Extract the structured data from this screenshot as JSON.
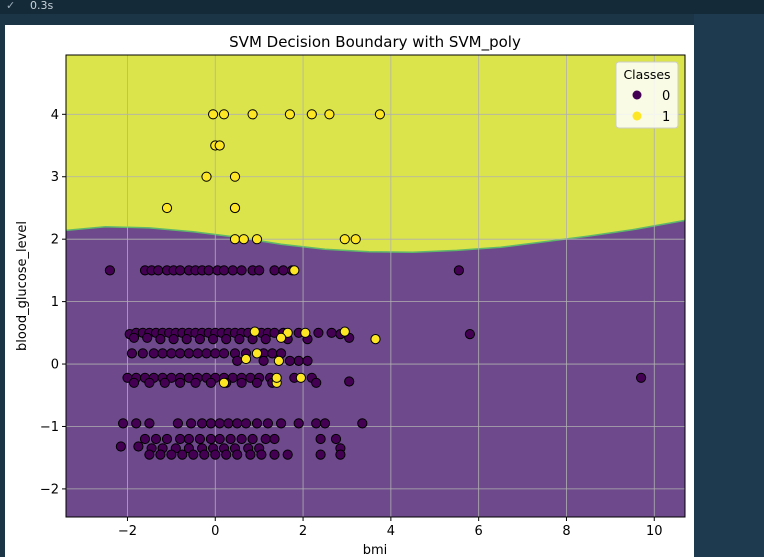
{
  "output_header": {
    "check_icon": "check-icon",
    "time": "0.3s"
  },
  "chart_data": {
    "type": "scatter",
    "title": "SVM Decision Boundary with SVM_poly",
    "xlabel": "bmi",
    "ylabel": "blood_glucose_level",
    "xlim": [
      -3.4,
      10.7
    ],
    "ylim": [
      -2.45,
      4.95
    ],
    "xticks": [
      -2,
      0,
      2,
      4,
      6,
      8,
      10
    ],
    "yticks": [
      -2,
      -1,
      0,
      1,
      2,
      3,
      4
    ],
    "xtick_labels": [
      "−2",
      "0",
      "2",
      "4",
      "6",
      "8",
      "10"
    ],
    "ytick_labels": [
      "−2",
      "−1",
      "0",
      "1",
      "2",
      "3",
      "4"
    ],
    "grid": true,
    "legend": {
      "title": "Classes",
      "placement": "top-right",
      "entries": [
        "0",
        "1"
      ]
    },
    "colors": {
      "class_0": "#440154",
      "class_1": "#fde725",
      "region_0": "#6e4a8c",
      "region_1": "#dbe44a",
      "boundary": "#5fb86a"
    },
    "decision_boundary": {
      "x": [
        -3.4,
        -2.5,
        -1.5,
        -0.5,
        0.5,
        1.5,
        2.5,
        3.5,
        4.5,
        5.5,
        6.5,
        7.5,
        8.5,
        9.5,
        10.7
      ],
      "y": [
        2.14,
        2.2,
        2.18,
        2.12,
        2.03,
        1.92,
        1.84,
        1.8,
        1.79,
        1.82,
        1.87,
        1.96,
        2.05,
        2.15,
        2.3
      ],
      "above": "1",
      "below": "0"
    },
    "series": [
      {
        "name": "0",
        "points": [
          [
            -2.4,
            1.5
          ],
          [
            -1.6,
            1.5
          ],
          [
            -1.45,
            1.5
          ],
          [
            -1.3,
            1.5
          ],
          [
            -1.1,
            1.5
          ],
          [
            -0.95,
            1.5
          ],
          [
            -0.8,
            1.5
          ],
          [
            -0.6,
            1.5
          ],
          [
            -0.45,
            1.5
          ],
          [
            -0.3,
            1.5
          ],
          [
            -0.15,
            1.5
          ],
          [
            0.05,
            1.5
          ],
          [
            0.2,
            1.5
          ],
          [
            0.4,
            1.5
          ],
          [
            0.6,
            1.5
          ],
          [
            0.85,
            1.5
          ],
          [
            1.0,
            1.5
          ],
          [
            1.35,
            1.5
          ],
          [
            1.55,
            1.5
          ],
          [
            1.75,
            1.5
          ],
          [
            5.55,
            1.5
          ],
          [
            -1.95,
            0.48
          ],
          [
            -1.8,
            0.5
          ],
          [
            -1.65,
            0.5
          ],
          [
            -1.5,
            0.5
          ],
          [
            -1.35,
            0.5
          ],
          [
            -1.2,
            0.5
          ],
          [
            -1.05,
            0.5
          ],
          [
            -0.9,
            0.5
          ],
          [
            -0.75,
            0.5
          ],
          [
            -0.6,
            0.5
          ],
          [
            -0.45,
            0.5
          ],
          [
            -0.3,
            0.5
          ],
          [
            -0.15,
            0.5
          ],
          [
            0.0,
            0.5
          ],
          [
            0.15,
            0.5
          ],
          [
            0.3,
            0.5
          ],
          [
            0.45,
            0.5
          ],
          [
            0.6,
            0.5
          ],
          [
            0.75,
            0.5
          ],
          [
            1.05,
            0.5
          ],
          [
            1.2,
            0.5
          ],
          [
            1.35,
            0.5
          ],
          [
            1.55,
            0.5
          ],
          [
            1.9,
            0.5
          ],
          [
            2.35,
            0.5
          ],
          [
            2.65,
            0.5
          ],
          [
            2.85,
            0.48
          ],
          [
            3.05,
            0.42
          ],
          [
            5.8,
            0.48
          ],
          [
            -1.85,
            0.42
          ],
          [
            -1.55,
            0.42
          ],
          [
            -1.25,
            0.4
          ],
          [
            -0.95,
            0.4
          ],
          [
            -0.65,
            0.4
          ],
          [
            -0.35,
            0.4
          ],
          [
            -0.05,
            0.4
          ],
          [
            0.25,
            0.4
          ],
          [
            0.55,
            0.4
          ],
          [
            0.85,
            0.4
          ],
          [
            1.15,
            0.4
          ],
          [
            1.65,
            0.4
          ],
          [
            2.1,
            0.4
          ],
          [
            -1.9,
            0.17
          ],
          [
            -1.65,
            0.17
          ],
          [
            -1.4,
            0.17
          ],
          [
            -1.2,
            0.17
          ],
          [
            -1.0,
            0.17
          ],
          [
            -0.8,
            0.17
          ],
          [
            -0.6,
            0.17
          ],
          [
            -0.4,
            0.17
          ],
          [
            -0.2,
            0.17
          ],
          [
            0.0,
            0.17
          ],
          [
            0.2,
            0.17
          ],
          [
            0.45,
            0.17
          ],
          [
            0.7,
            0.17
          ],
          [
            1.1,
            0.17
          ],
          [
            1.3,
            0.17
          ],
          [
            1.5,
            0.17
          ],
          [
            1.9,
            0.05
          ],
          [
            2.1,
            0.05
          ],
          [
            1.7,
            0.05
          ],
          [
            1.1,
            0.05
          ],
          [
            0.5,
            0.05
          ],
          [
            -2.0,
            -0.22
          ],
          [
            -1.8,
            -0.22
          ],
          [
            -1.6,
            -0.22
          ],
          [
            -1.4,
            -0.22
          ],
          [
            -1.2,
            -0.22
          ],
          [
            -1.0,
            -0.22
          ],
          [
            -0.8,
            -0.22
          ],
          [
            -0.6,
            -0.22
          ],
          [
            -0.4,
            -0.22
          ],
          [
            -0.2,
            -0.22
          ],
          [
            0.0,
            -0.22
          ],
          [
            0.2,
            -0.22
          ],
          [
            0.4,
            -0.22
          ],
          [
            0.6,
            -0.22
          ],
          [
            0.8,
            -0.22
          ],
          [
            1.0,
            -0.22
          ],
          [
            1.25,
            -0.22
          ],
          [
            1.8,
            -0.22
          ],
          [
            2.2,
            -0.22
          ],
          [
            -1.85,
            -0.3
          ],
          [
            -1.5,
            -0.3
          ],
          [
            -1.15,
            -0.3
          ],
          [
            -0.8,
            -0.3
          ],
          [
            -0.45,
            -0.3
          ],
          [
            -0.1,
            -0.3
          ],
          [
            0.25,
            -0.3
          ],
          [
            0.6,
            -0.3
          ],
          [
            0.95,
            -0.3
          ],
          [
            1.3,
            -0.3
          ],
          [
            2.3,
            -0.3
          ],
          [
            3.05,
            -0.28
          ],
          [
            9.7,
            -0.22
          ],
          [
            -2.1,
            -0.95
          ],
          [
            -1.8,
            -0.95
          ],
          [
            -1.5,
            -0.95
          ],
          [
            -0.85,
            -0.95
          ],
          [
            -0.55,
            -0.95
          ],
          [
            -0.3,
            -0.95
          ],
          [
            -0.1,
            -0.95
          ],
          [
            0.1,
            -0.95
          ],
          [
            0.3,
            -0.95
          ],
          [
            0.5,
            -0.95
          ],
          [
            0.7,
            -0.95
          ],
          [
            0.95,
            -0.95
          ],
          [
            1.2,
            -0.95
          ],
          [
            1.5,
            -0.95
          ],
          [
            1.9,
            -0.95
          ],
          [
            2.3,
            -0.95
          ],
          [
            2.5,
            -0.95
          ],
          [
            3.35,
            -0.95
          ],
          [
            -1.6,
            -1.2
          ],
          [
            -1.35,
            -1.2
          ],
          [
            -1.1,
            -1.2
          ],
          [
            -0.8,
            -1.2
          ],
          [
            -0.6,
            -1.2
          ],
          [
            -0.35,
            -1.2
          ],
          [
            -0.1,
            -1.2
          ],
          [
            0.1,
            -1.2
          ],
          [
            0.35,
            -1.2
          ],
          [
            0.6,
            -1.2
          ],
          [
            0.85,
            -1.2
          ],
          [
            1.15,
            -1.2
          ],
          [
            1.35,
            -1.2
          ],
          [
            2.4,
            -1.2
          ],
          [
            2.75,
            -1.2
          ],
          [
            -2.15,
            -1.32
          ],
          [
            -1.75,
            -1.32
          ],
          [
            -1.45,
            -1.35
          ],
          [
            -1.2,
            -1.35
          ],
          [
            -0.9,
            -1.35
          ],
          [
            -0.6,
            -1.35
          ],
          [
            -0.3,
            -1.35
          ],
          [
            -0.05,
            -1.35
          ],
          [
            0.2,
            -1.35
          ],
          [
            0.45,
            -1.35
          ],
          [
            0.75,
            -1.35
          ],
          [
            1.0,
            -1.35
          ],
          [
            2.85,
            -1.35
          ],
          [
            -1.5,
            -1.45
          ],
          [
            -1.25,
            -1.45
          ],
          [
            -1.0,
            -1.45
          ],
          [
            -0.75,
            -1.45
          ],
          [
            -0.5,
            -1.45
          ],
          [
            -0.25,
            -1.45
          ],
          [
            0.0,
            -1.45
          ],
          [
            0.25,
            -1.45
          ],
          [
            0.5,
            -1.45
          ],
          [
            0.8,
            -1.45
          ],
          [
            1.05,
            -1.45
          ],
          [
            1.35,
            -1.45
          ],
          [
            1.65,
            -1.45
          ],
          [
            2.4,
            -1.45
          ],
          [
            2.85,
            -1.45
          ]
        ]
      },
      {
        "name": "1",
        "points": [
          [
            -0.05,
            4.0
          ],
          [
            0.2,
            4.0
          ],
          [
            0.85,
            4.0
          ],
          [
            1.7,
            4.0
          ],
          [
            2.2,
            4.0
          ],
          [
            2.6,
            4.0
          ],
          [
            3.75,
            4.0
          ],
          [
            0.0,
            3.5
          ],
          [
            0.1,
            3.5
          ],
          [
            -0.2,
            3.0
          ],
          [
            0.45,
            3.0
          ],
          [
            -1.1,
            2.5
          ],
          [
            0.45,
            2.5
          ],
          [
            0.45,
            2.5
          ],
          [
            0.45,
            2.0
          ],
          [
            0.65,
            2.0
          ],
          [
            0.95,
            2.0
          ],
          [
            2.95,
            2.0
          ],
          [
            3.2,
            2.0
          ],
          [
            1.8,
            1.5
          ],
          [
            0.9,
            0.52
          ],
          [
            1.65,
            0.5
          ],
          [
            2.05,
            0.5
          ],
          [
            2.95,
            0.52
          ],
          [
            3.65,
            0.4
          ],
          [
            1.5,
            0.42
          ],
          [
            0.95,
            0.17
          ],
          [
            0.7,
            0.08
          ],
          [
            1.45,
            0.05
          ],
          [
            0.2,
            -0.3
          ],
          [
            1.4,
            -0.3
          ],
          [
            1.4,
            -0.22
          ],
          [
            1.95,
            -0.22
          ]
        ]
      }
    ]
  }
}
